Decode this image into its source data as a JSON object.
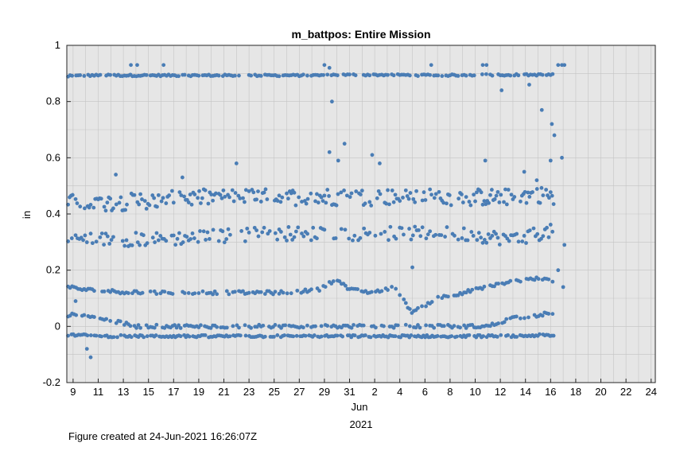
{
  "chart_data": {
    "type": "scatter",
    "title": "m_battpos: Entire Mission",
    "ylabel": "in",
    "xlabel_month": "Jun",
    "xlabel_year": "2021",
    "ylim": [
      -0.2,
      1.0
    ],
    "yticks": [
      -0.2,
      0,
      0.2,
      0.4,
      0.6,
      0.8,
      1
    ],
    "ytick_labels": [
      "-0.2",
      "0",
      "0.2",
      "0.4",
      "0.6",
      "0.8",
      "1"
    ],
    "xlim": [
      "2021-05-08T12:00",
      "2021-06-24T08:00"
    ],
    "xticks": [
      "2021-05-09",
      "2021-05-11",
      "2021-05-13",
      "2021-05-15",
      "2021-05-17",
      "2021-05-19",
      "2021-05-21",
      "2021-05-23",
      "2021-05-25",
      "2021-05-27",
      "2021-05-29",
      "2021-05-31",
      "2021-06-02",
      "2021-06-04",
      "2021-06-06",
      "2021-06-08",
      "2021-06-10",
      "2021-06-12",
      "2021-06-14",
      "2021-06-16",
      "2021-06-18",
      "2021-06-20",
      "2021-06-22",
      "2021-06-24"
    ],
    "xtick_labels": [
      "9",
      "11",
      "13",
      "15",
      "17",
      "19",
      "21",
      "23",
      "25",
      "27",
      "29",
      "31",
      "2",
      "4",
      "6",
      "8",
      "10",
      "12",
      "14",
      "16",
      "18",
      "20",
      "22",
      "24"
    ],
    "grid": true,
    "marker_color": "#4a7db5",
    "bands": [
      {
        "x": [
          [
            8.6,
            0.89
          ],
          [
            10,
            0.893
          ],
          [
            14,
            0.893
          ],
          [
            16,
            0.893
          ],
          [
            20,
            0.893
          ],
          [
            24,
            0.893
          ],
          [
            28,
            0.893
          ],
          [
            30,
            0.895
          ],
          [
            34,
            0.895
          ],
          [
            38,
            0.893
          ],
          [
            42,
            0.895
          ],
          [
            46,
            0.895
          ],
          [
            47.3,
            0.895
          ]
        ]
      },
      {
        "x": [
          [
            8.6,
            0.44
          ],
          [
            12,
            0.44
          ],
          [
            16,
            0.45
          ],
          [
            20,
            0.46
          ],
          [
            24,
            0.46
          ],
          [
            28,
            0.46
          ],
          [
            32,
            0.46
          ],
          [
            36,
            0.46
          ],
          [
            40,
            0.46
          ],
          [
            44,
            0.46
          ],
          [
            46,
            0.47
          ],
          [
            47.3,
            0.46
          ]
        ]
      },
      {
        "x": [
          [
            8.6,
            0.31
          ],
          [
            12,
            0.31
          ],
          [
            16,
            0.31
          ],
          [
            20,
            0.32
          ],
          [
            24,
            0.33
          ],
          [
            28,
            0.33
          ],
          [
            32,
            0.33
          ],
          [
            36,
            0.33
          ],
          [
            40,
            0.33
          ],
          [
            44,
            0.31
          ],
          [
            46,
            0.33
          ],
          [
            47.3,
            0.34
          ]
        ]
      },
      {
        "x": [
          [
            8.6,
            0.14
          ],
          [
            10,
            0.13
          ],
          [
            14,
            0.12
          ],
          [
            18,
            0.12
          ],
          [
            22,
            0.12
          ],
          [
            26,
            0.12
          ],
          [
            28.5,
            0.13
          ],
          [
            30,
            0.17
          ],
          [
            31,
            0.13
          ],
          [
            33,
            0.12
          ],
          [
            34.5,
            0.14
          ],
          [
            36,
            0.05
          ],
          [
            38,
            0.1
          ],
          [
            40,
            0.12
          ],
          [
            42,
            0.14
          ],
          [
            44,
            0.16
          ],
          [
            46,
            0.17
          ],
          [
            47.3,
            0.16
          ]
        ]
      },
      {
        "x": [
          [
            8.6,
            0.04
          ],
          [
            10,
            0.04
          ],
          [
            14,
            0.0
          ],
          [
            18,
            0.0
          ],
          [
            22,
            0.0
          ],
          [
            26,
            0.0
          ],
          [
            30,
            0.0
          ],
          [
            34,
            0.0
          ],
          [
            38,
            0.0
          ],
          [
            42,
            0.0
          ],
          [
            44,
            0.03
          ],
          [
            46,
            0.04
          ],
          [
            47.3,
            0.05
          ]
        ]
      },
      {
        "x": [
          [
            8.6,
            -0.03
          ],
          [
            12,
            -0.035
          ],
          [
            16,
            -0.035
          ],
          [
            20,
            -0.035
          ],
          [
            24,
            -0.035
          ],
          [
            28,
            -0.035
          ],
          [
            32,
            -0.035
          ],
          [
            36,
            -0.035
          ],
          [
            40,
            -0.035
          ],
          [
            44,
            -0.035
          ],
          [
            47.3,
            -0.03
          ]
        ]
      }
    ],
    "outliers": [
      [
        13.6,
        0.93
      ],
      [
        14.1,
        0.93
      ],
      [
        16.2,
        0.93
      ],
      [
        29.0,
        0.93
      ],
      [
        29.4,
        0.92
      ],
      [
        29.6,
        0.8
      ],
      [
        37.5,
        0.93
      ],
      [
        41.6,
        0.93
      ],
      [
        41.9,
        0.93
      ],
      [
        43.1,
        0.84
      ],
      [
        45.3,
        0.86
      ],
      [
        46.3,
        0.77
      ],
      [
        47.6,
        0.93
      ],
      [
        47.9,
        0.93
      ],
      [
        48.1,
        0.93
      ],
      [
        22.0,
        0.58
      ],
      [
        17.7,
        0.53
      ],
      [
        12.4,
        0.54
      ],
      [
        29.4,
        0.62
      ],
      [
        30.1,
        0.59
      ],
      [
        30.6,
        0.65
      ],
      [
        32.8,
        0.61
      ],
      [
        33.4,
        0.58
      ],
      [
        41.8,
        0.59
      ],
      [
        44.9,
        0.55
      ],
      [
        45.9,
        0.52
      ],
      [
        47.1,
        0.72
      ],
      [
        47.3,
        0.68
      ],
      [
        47.0,
        0.59
      ],
      [
        47.9,
        0.6
      ],
      [
        9.2,
        0.09
      ],
      [
        10.1,
        -0.08
      ],
      [
        10.4,
        -0.11
      ],
      [
        36.0,
        0.21
      ],
      [
        47.6,
        0.2
      ],
      [
        48.1,
        0.29
      ],
      [
        48.0,
        0.14
      ]
    ]
  }
}
